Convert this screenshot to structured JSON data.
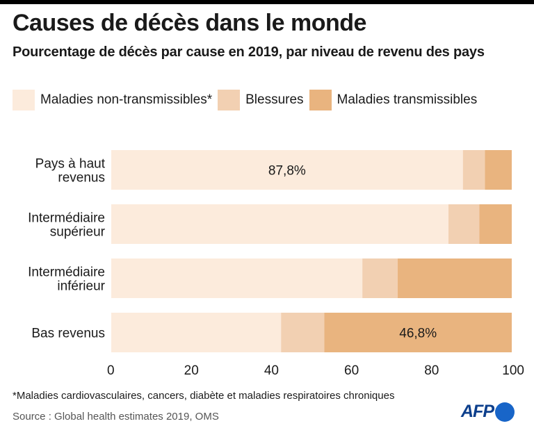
{
  "header": {
    "title": "Causes de décès dans le monde",
    "subtitle": "Pourcentage de décès par cause en 2019, par niveau de revenu des pays"
  },
  "legend": [
    {
      "label": "Maladies non-transmissibles*",
      "color": "#fcebdc"
    },
    {
      "label": "Blessures",
      "color": "#f2d0b2"
    },
    {
      "label": "Maladies transmissibles",
      "color": "#e9b47f"
    }
  ],
  "chart_data": {
    "type": "bar",
    "orientation": "horizontal",
    "stacked": true,
    "categories": [
      [
        "Pays à haut",
        "revenus"
      ],
      [
        "Intermédiaire",
        "supérieur"
      ],
      [
        "Intermédiaire",
        "inférieur"
      ],
      [
        "Bas revenus"
      ]
    ],
    "series": [
      {
        "name": "Maladies non-transmissibles*",
        "color": "#fcebdc",
        "values": [
          87.8,
          84.2,
          62.7,
          42.4
        ]
      },
      {
        "name": "Blessures",
        "color": "#f2d0b2",
        "values": [
          5.5,
          7.7,
          8.8,
          10.8
        ]
      },
      {
        "name": "Maladies transmissibles",
        "color": "#e9b47f",
        "values": [
          6.7,
          8.1,
          28.5,
          46.8
        ]
      }
    ],
    "data_labels": [
      {
        "category": 0,
        "series": 0,
        "text": "87,8%"
      },
      {
        "category": 3,
        "series": 2,
        "text": "46,8%"
      }
    ],
    "xlim": [
      0,
      100
    ],
    "xticks": [
      0,
      20,
      40,
      60,
      80,
      100
    ],
    "grid": false,
    "legend_position": "top"
  },
  "footer": {
    "footnote": "*Maladies cardiovasculaires, cancers, diabète et maladies respiratoires chroniques",
    "source": "Source : Global health estimates 2019, OMS",
    "logo": "AFP"
  }
}
